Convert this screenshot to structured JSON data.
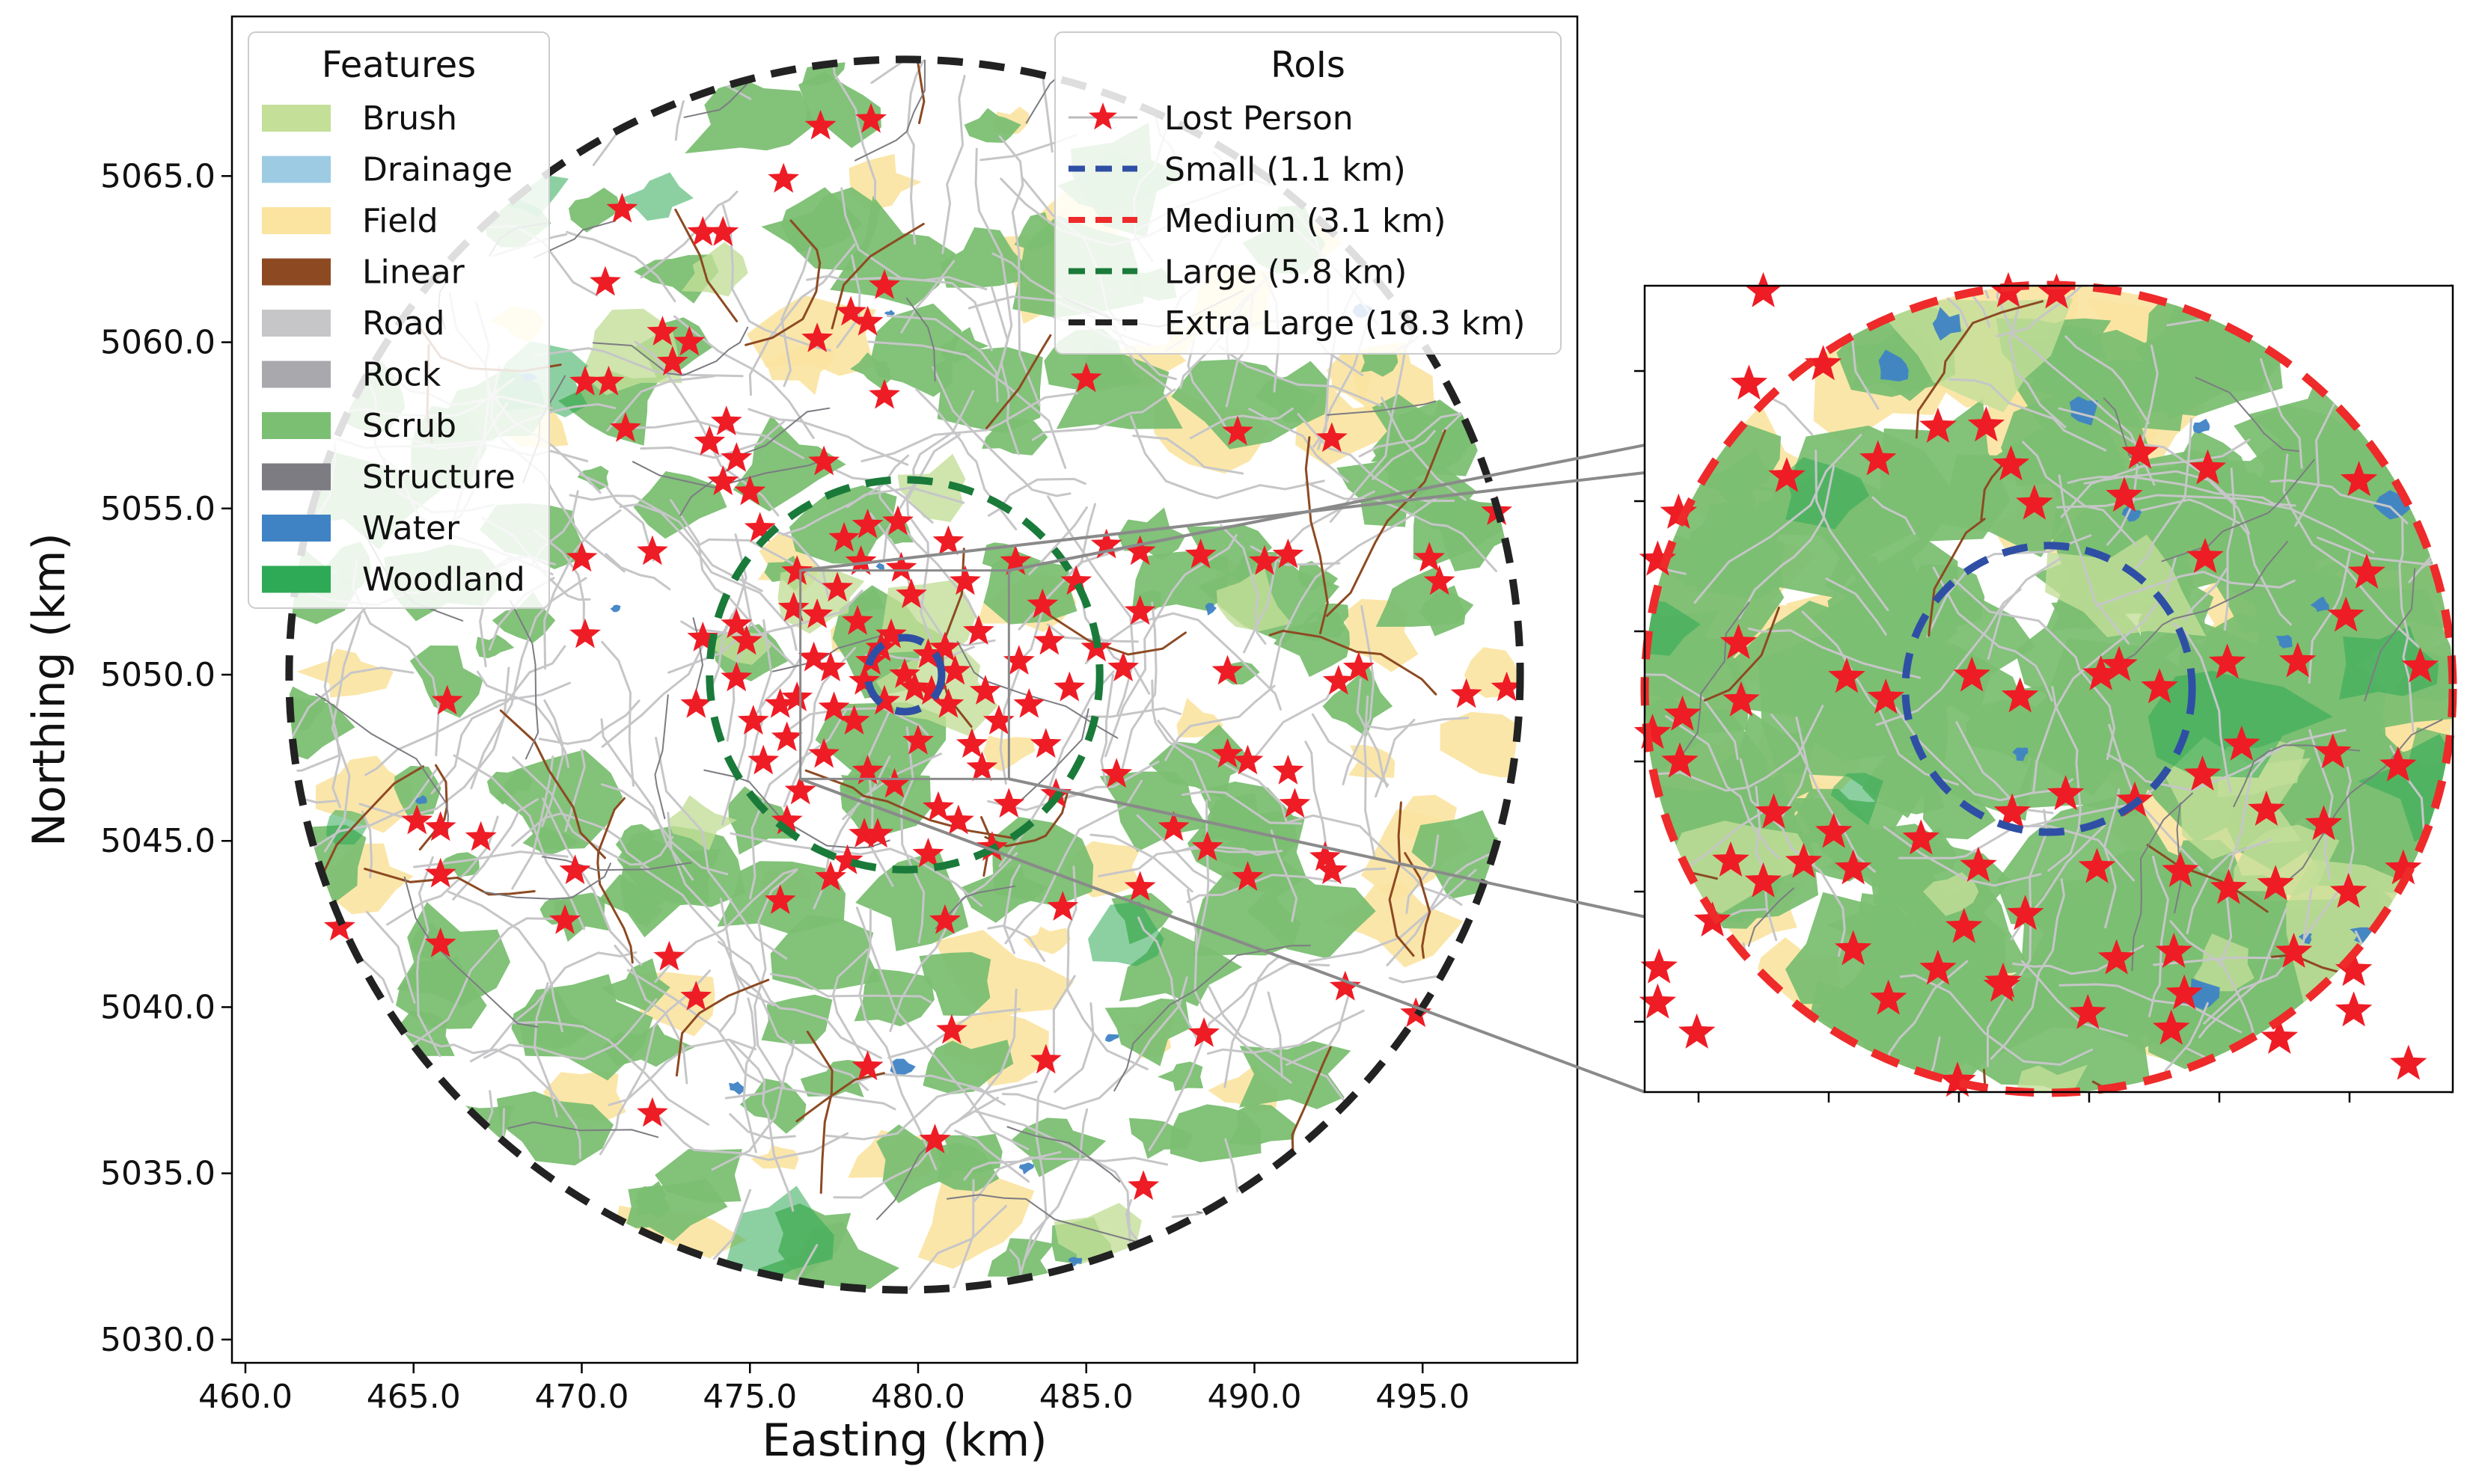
{
  "chart_data": [
    {
      "type": "scatter",
      "title": "",
      "xlabel": "Easting (km)",
      "ylabel": "Northing (km)",
      "xlim": [
        459.6,
        499.6
      ],
      "ylim": [
        5029.3,
        5069.8
      ],
      "xticks": [
        "460.0",
        "465.0",
        "470.0",
        "475.0",
        "480.0",
        "485.0",
        "490.0",
        "495.0"
      ],
      "yticks": [
        "5030.0",
        "5035.0",
        "5040.0",
        "5045.0",
        "5050.0",
        "5055.0",
        "5060.0",
        "5065.0"
      ],
      "grid": false,
      "center": [
        479.6,
        5050.0
      ],
      "map_radius_km": 18.3,
      "inset_extent_km": 3.1,
      "feature_legend": {
        "title": "Features",
        "placement": "top-left",
        "entries": [
          {
            "label": "Brush",
            "color": "#c3df98"
          },
          {
            "label": "Drainage",
            "color": "#9dcbe3"
          },
          {
            "label": "Field",
            "color": "#fbe3a0"
          },
          {
            "label": "Linear",
            "color": "#8d4a22"
          },
          {
            "label": "Road",
            "color": "#c6c6c8"
          },
          {
            "label": "Rock",
            "color": "#a8a8ad"
          },
          {
            "label": "Scrub",
            "color": "#7bbf72"
          },
          {
            "label": "Structure",
            "color": "#7c7c82"
          },
          {
            "label": "Water",
            "color": "#3f83c5"
          },
          {
            "label": "Woodland",
            "color": "#2eaa56"
          }
        ]
      },
      "roi_legend": {
        "title": "RoIs",
        "placement": "top-right",
        "entries": [
          {
            "label": "Lost Person",
            "color": "#ee1c25",
            "style": "star"
          },
          {
            "label": "Small (1.1 km)",
            "color": "#2f4fa5",
            "style": "dashed",
            "radius_km": 1.1
          },
          {
            "label": "Medium (3.1 km)",
            "color": "#ee2a2a",
            "style": "dashed",
            "radius_km": 3.1
          },
          {
            "label": "Large (5.8 km)",
            "color": "#1a7a3a",
            "style": "dashed",
            "radius_km": 5.8
          },
          {
            "label": "Extra Large (18.3 km)",
            "color": "#222222",
            "style": "dashed",
            "radius_km": 18.3
          }
        ]
      },
      "lost_person_points": [
        [
          477.1,
          5066.5
        ],
        [
          478.6,
          5066.7
        ],
        [
          476.0,
          5064.9
        ],
        [
          471.2,
          5064.0
        ],
        [
          473.6,
          5063.3
        ],
        [
          474.2,
          5063.3
        ],
        [
          470.7,
          5061.8
        ],
        [
          478.0,
          5060.9
        ],
        [
          479.0,
          5061.7
        ],
        [
          478.5,
          5060.6
        ],
        [
          477.0,
          5060.1
        ],
        [
          472.4,
          5060.3
        ],
        [
          473.2,
          5060.0
        ],
        [
          470.1,
          5058.8
        ],
        [
          470.8,
          5058.8
        ],
        [
          472.7,
          5059.4
        ],
        [
          479.0,
          5058.4
        ],
        [
          485.0,
          5058.9
        ],
        [
          471.3,
          5057.4
        ],
        [
          474.3,
          5057.6
        ],
        [
          473.8,
          5057.0
        ],
        [
          474.6,
          5056.5
        ],
        [
          474.2,
          5055.8
        ],
        [
          475.0,
          5055.5
        ],
        [
          477.2,
          5056.4
        ],
        [
          489.5,
          5057.3
        ],
        [
          492.3,
          5057.1
        ],
        [
          475.3,
          5054.4
        ],
        [
          478.5,
          5054.5
        ],
        [
          479.4,
          5054.6
        ],
        [
          485.6,
          5053.9
        ],
        [
          486.6,
          5053.7
        ],
        [
          488.4,
          5053.6
        ],
        [
          490.3,
          5053.4
        ],
        [
          491.0,
          5053.6
        ],
        [
          495.2,
          5053.5
        ],
        [
          497.2,
          5054.9
        ],
        [
          472.1,
          5053.7
        ],
        [
          470.0,
          5053.5
        ],
        [
          473.6,
          5051.1
        ],
        [
          474.6,
          5051.5
        ],
        [
          470.1,
          5051.2
        ],
        [
          473.4,
          5049.1
        ],
        [
          475.1,
          5048.6
        ],
        [
          476.1,
          5048.1
        ],
        [
          486.1,
          5050.2
        ],
        [
          486.6,
          5051.9
        ],
        [
          489.2,
          5050.1
        ],
        [
          493.1,
          5050.2
        ],
        [
          492.5,
          5049.8
        ],
        [
          496.3,
          5049.4
        ],
        [
          497.5,
          5049.6
        ],
        [
          495.5,
          5052.8
        ],
        [
          489.2,
          5047.6
        ],
        [
          489.8,
          5047.4
        ],
        [
          491.0,
          5047.1
        ],
        [
          491.2,
          5046.1
        ],
        [
          485.9,
          5047.0
        ],
        [
          466.0,
          5049.2
        ],
        [
          465.1,
          5045.6
        ],
        [
          465.8,
          5045.4
        ],
        [
          467.0,
          5045.1
        ],
        [
          465.8,
          5044.0
        ],
        [
          469.8,
          5044.1
        ],
        [
          469.5,
          5042.6
        ],
        [
          462.8,
          5042.4
        ],
        [
          465.8,
          5041.9
        ],
        [
          472.6,
          5041.5
        ],
        [
          473.4,
          5040.3
        ],
        [
          475.9,
          5043.2
        ],
        [
          477.4,
          5043.9
        ],
        [
          478.4,
          5045.2
        ],
        [
          480.8,
          5042.6
        ],
        [
          484.3,
          5043.0
        ],
        [
          486.6,
          5043.6
        ],
        [
          487.6,
          5045.4
        ],
        [
          488.6,
          5044.8
        ],
        [
          489.8,
          5043.9
        ],
        [
          492.1,
          5044.5
        ],
        [
          492.3,
          5044.1
        ],
        [
          492.7,
          5040.6
        ],
        [
          494.8,
          5039.8
        ],
        [
          488.5,
          5039.2
        ],
        [
          481.0,
          5039.3
        ],
        [
          478.5,
          5038.2
        ],
        [
          483.8,
          5038.4
        ],
        [
          480.5,
          5036.0
        ],
        [
          472.1,
          5036.8
        ],
        [
          486.7,
          5034.6
        ],
        [
          479.6,
          5050.0
        ],
        [
          478.6,
          5050.4
        ],
        [
          480.4,
          5049.5
        ],
        [
          479.0,
          5049.2
        ],
        [
          480.8,
          5050.8
        ],
        [
          478.2,
          5051.6
        ],
        [
          481.8,
          5051.3
        ],
        [
          477.5,
          5049.0
        ],
        [
          482.4,
          5048.6
        ],
        [
          476.9,
          5050.5
        ],
        [
          483.0,
          5050.4
        ],
        [
          477.6,
          5052.6
        ],
        [
          481.4,
          5052.8
        ],
        [
          479.5,
          5053.2
        ],
        [
          476.3,
          5052.0
        ],
        [
          483.7,
          5052.1
        ],
        [
          477.2,
          5047.6
        ],
        [
          481.9,
          5047.2
        ],
        [
          479.3,
          5046.7
        ],
        [
          483.8,
          5047.9
        ],
        [
          475.9,
          5049.1
        ],
        [
          484.5,
          5049.6
        ],
        [
          478.8,
          5045.2
        ],
        [
          481.2,
          5045.6
        ],
        [
          477.9,
          5044.4
        ],
        [
          480.3,
          5044.6
        ],
        [
          482.7,
          5046.1
        ],
        [
          476.5,
          5046.5
        ],
        [
          484.7,
          5052.8
        ],
        [
          474.9,
          5051.0
        ],
        [
          480.0,
          5048.0
        ],
        [
          479.2,
          5051.2
        ],
        [
          478.1,
          5048.6
        ],
        [
          482.0,
          5049.5
        ],
        [
          477.0,
          5051.8
        ],
        [
          482.9,
          5053.4
        ],
        [
          476.4,
          5053.1
        ],
        [
          484.1,
          5046.4
        ],
        [
          475.4,
          5047.4
        ],
        [
          480.9,
          5054.0
        ],
        [
          477.8,
          5054.1
        ],
        [
          482.2,
          5044.8
        ],
        [
          476.1,
          5045.6
        ],
        [
          485.3,
          5050.8
        ],
        [
          474.6,
          5049.9
        ],
        [
          481.6,
          5047.9
        ],
        [
          478.5,
          5047.1
        ],
        [
          483.3,
          5049.1
        ],
        [
          476.4,
          5049.3
        ],
        [
          479.8,
          5052.4
        ],
        [
          480.6,
          5046.0
        ],
        [
          478.3,
          5053.4
        ],
        [
          483.9,
          5051.0
        ],
        [
          481.1,
          5050.1
        ],
        [
          477.4,
          5050.2
        ],
        [
          479.9,
          5049.6
        ],
        [
          480.3,
          5050.6
        ],
        [
          478.9,
          5050.8
        ],
        [
          480.9,
          5049.1
        ],
        [
          478.4,
          5049.8
        ]
      ],
      "inset_points": [
        [
          -2.19,
          3.05
        ],
        [
          -0.31,
          3.05
        ],
        [
          0.06,
          3.04
        ],
        [
          -2.3,
          2.34
        ],
        [
          -0.48,
          2.02
        ],
        [
          -0.85,
          2.01
        ],
        [
          -0.29,
          1.72
        ],
        [
          -1.31,
          1.76
        ],
        [
          -1.73,
          2.49
        ],
        [
          -2.01,
          1.63
        ],
        [
          0.7,
          1.81
        ],
        [
          1.22,
          1.69
        ],
        [
          2.38,
          1.6
        ],
        [
          -2.84,
          1.35
        ],
        [
          -3.0,
          0.99
        ],
        [
          -0.11,
          1.42
        ],
        [
          0.58,
          1.48
        ],
        [
          1.2,
          1.01
        ],
        [
          2.44,
          0.89
        ],
        [
          2.28,
          0.56
        ],
        [
          -2.38,
          0.35
        ],
        [
          -1.55,
          0.09
        ],
        [
          -1.25,
          -0.07
        ],
        [
          -2.36,
          -0.09
        ],
        [
          -2.81,
          -0.2
        ],
        [
          0.4,
          0.11
        ],
        [
          0.54,
          0.18
        ],
        [
          0.85,
          0.01
        ],
        [
          1.37,
          0.2
        ],
        [
          1.91,
          0.21
        ],
        [
          2.85,
          0.17
        ],
        [
          -3.04,
          -0.34
        ],
        [
          -2.83,
          -0.56
        ],
        [
          -0.59,
          0.1
        ],
        [
          -0.22,
          -0.06
        ],
        [
          1.48,
          -0.43
        ],
        [
          2.18,
          -0.49
        ],
        [
          2.68,
          -0.59
        ],
        [
          -2.11,
          -0.95
        ],
        [
          -1.65,
          -1.1
        ],
        [
          -0.98,
          -1.15
        ],
        [
          -0.28,
          -0.95
        ],
        [
          0.13,
          -0.81
        ],
        [
          0.66,
          -0.86
        ],
        [
          1.18,
          -0.66
        ],
        [
          1.67,
          -0.93
        ],
        [
          2.11,
          -1.04
        ],
        [
          -2.44,
          -1.32
        ],
        [
          -2.19,
          -1.48
        ],
        [
          -1.88,
          -1.33
        ],
        [
          -1.5,
          -1.38
        ],
        [
          -0.54,
          -1.36
        ],
        [
          0.37,
          -1.37
        ],
        [
          1.01,
          -1.4
        ],
        [
          1.38,
          -1.53
        ],
        [
          1.74,
          -1.5
        ],
        [
          2.3,
          -1.56
        ],
        [
          2.72,
          -1.38
        ],
        [
          -0.18,
          -1.73
        ],
        [
          -0.65,
          -1.83
        ],
        [
          0.52,
          -2.07
        ],
        [
          1.88,
          -2.02
        ],
        [
          2.34,
          -2.16
        ],
        [
          -0.36,
          -2.28
        ],
        [
          -2.58,
          -1.78
        ],
        [
          -2.99,
          -2.14
        ],
        [
          -3.0,
          -2.41
        ],
        [
          -2.7,
          -2.64
        ],
        [
          -1.23,
          -2.38
        ],
        [
          0.3,
          -2.49
        ],
        [
          0.94,
          -2.61
        ],
        [
          -1.5,
          -2.0
        ],
        [
          -0.85,
          -2.15
        ],
        [
          0.96,
          -2.02
        ],
        [
          1.77,
          -2.68
        ],
        [
          2.34,
          -2.47
        ],
        [
          2.76,
          -2.88
        ],
        [
          -0.7,
          -3.01
        ],
        [
          -0.35,
          -2.25
        ],
        [
          1.04,
          -2.34
        ]
      ]
    }
  ]
}
